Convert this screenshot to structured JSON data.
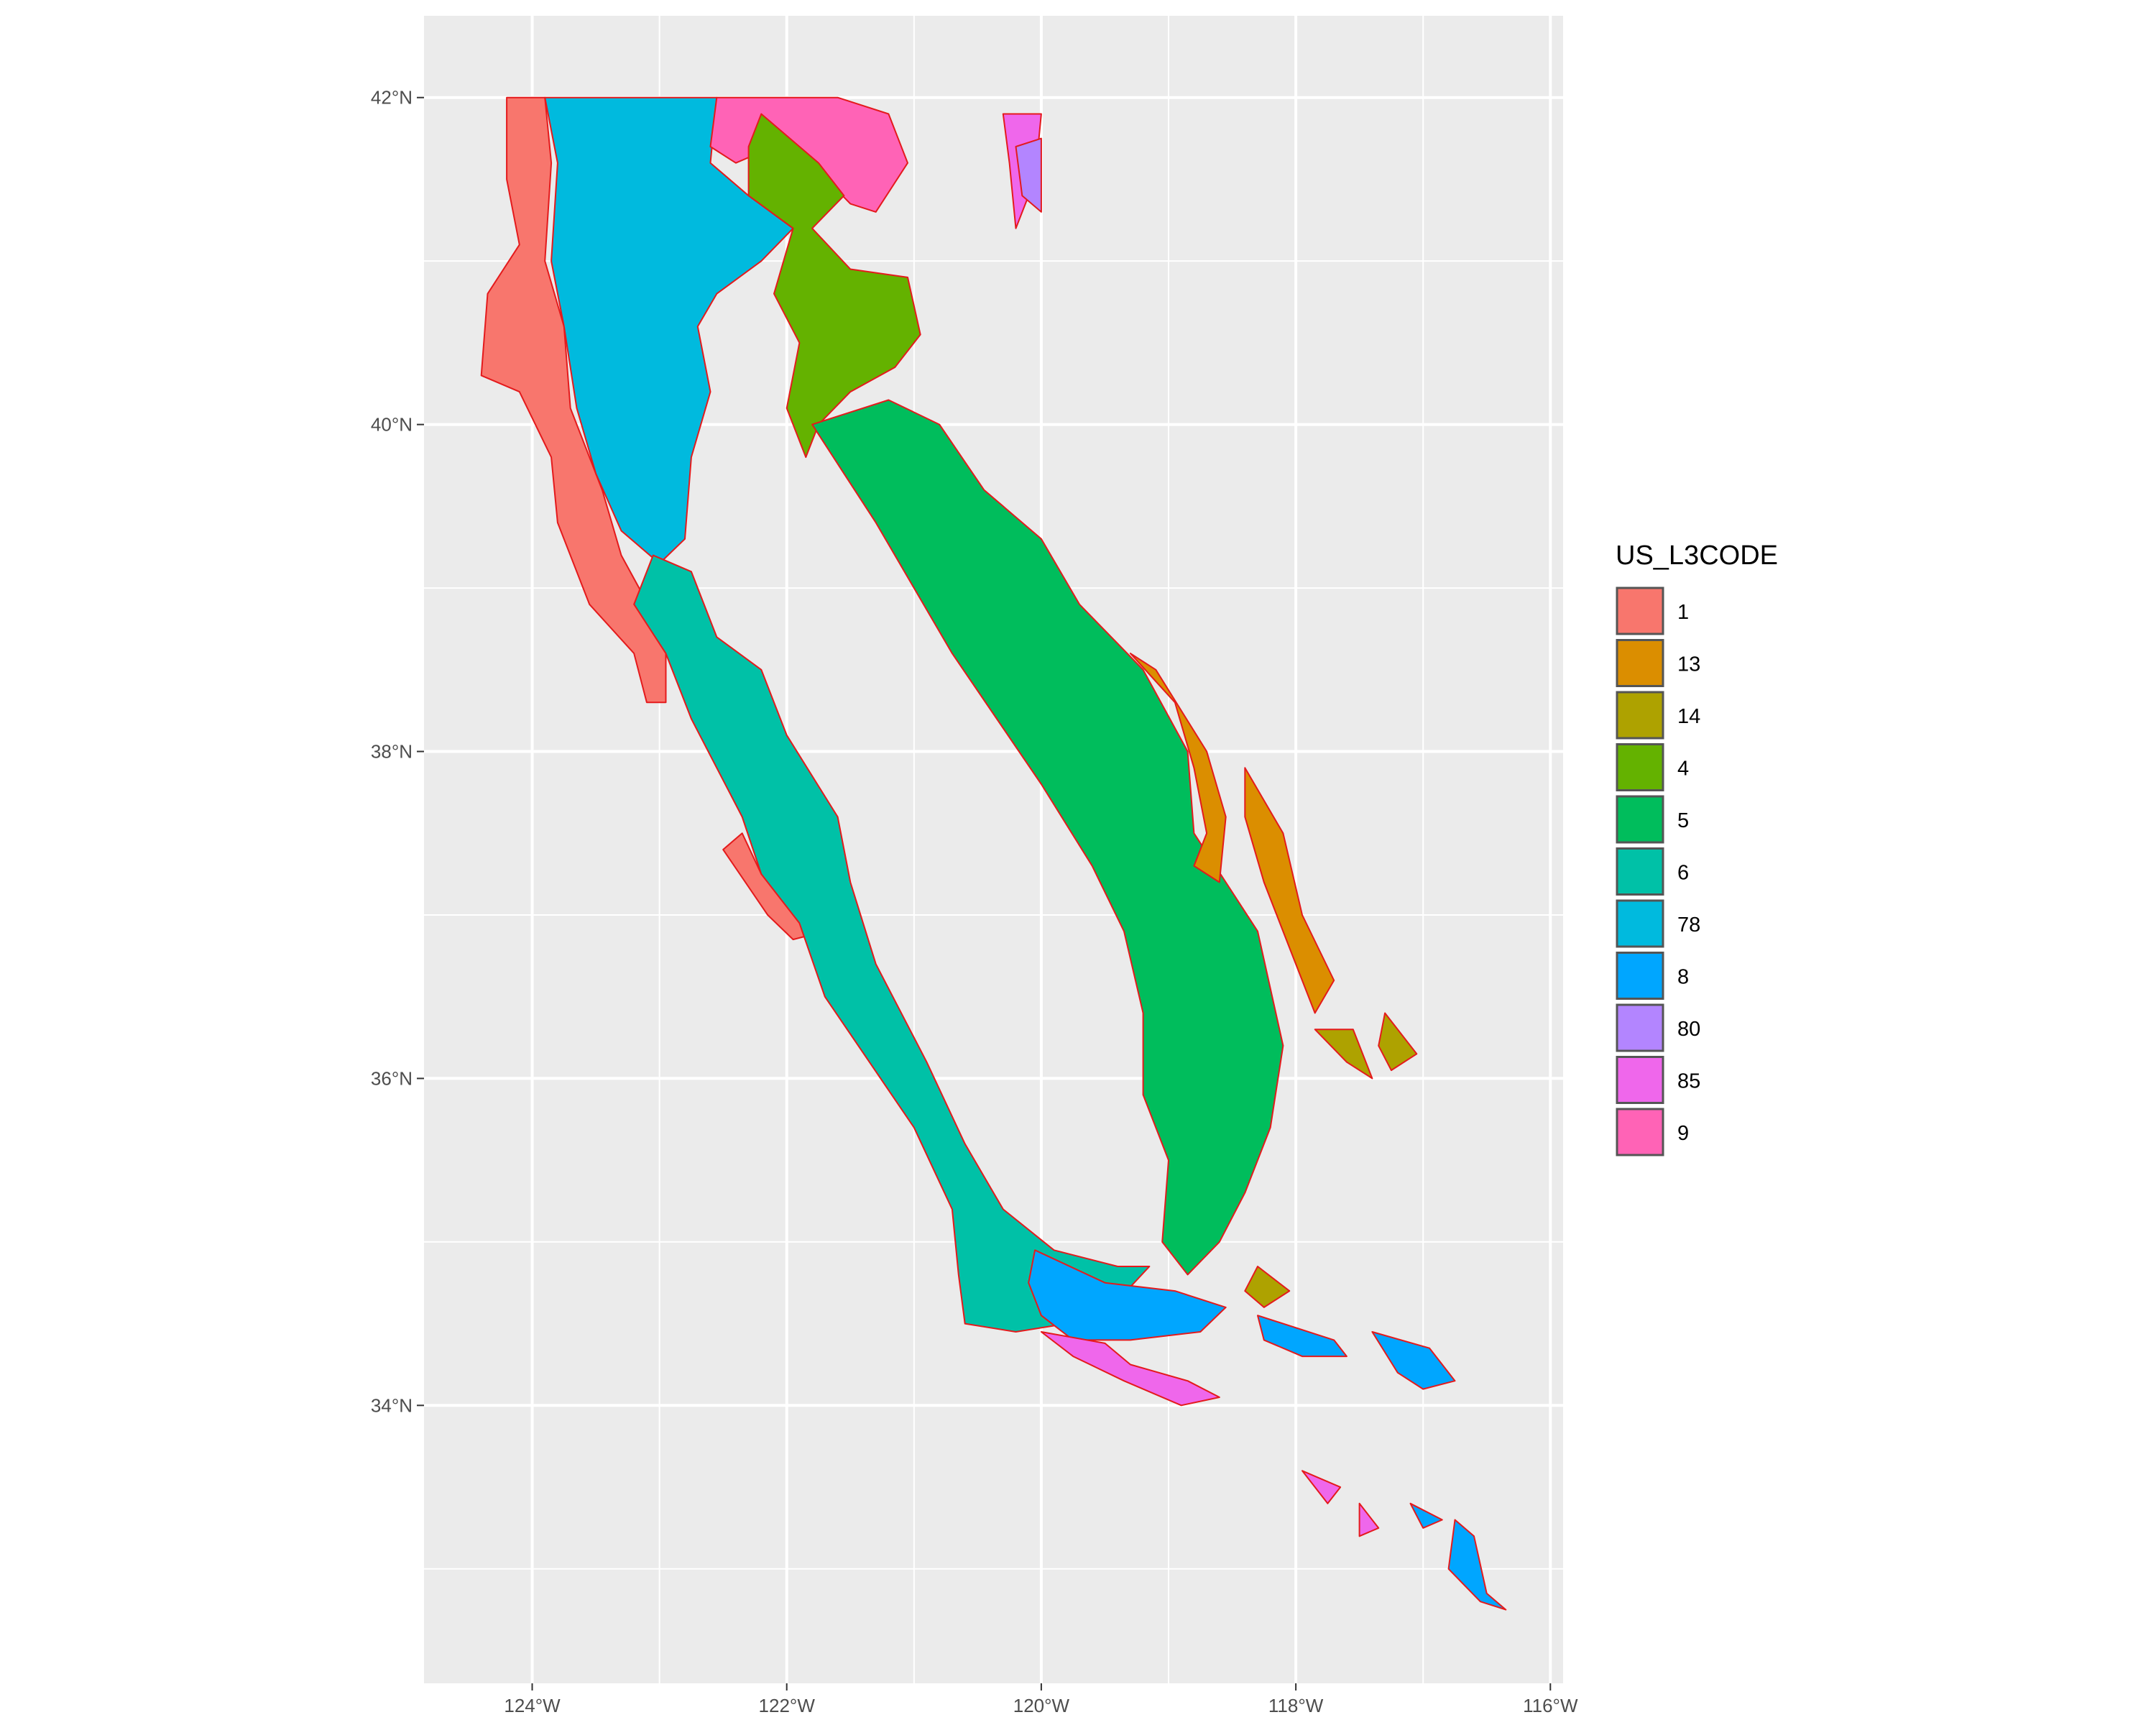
{
  "map": {
    "x_ticks": [
      "124°W",
      "122°W",
      "120°W",
      "118°W",
      "116°W"
    ],
    "x_tick_values": [
      -124,
      -122,
      -120,
      -118,
      -116
    ],
    "y_ticks": [
      "42°N",
      "40°N",
      "38°N",
      "36°N",
      "34°N"
    ],
    "y_tick_values": [
      42,
      40,
      38,
      36,
      34
    ],
    "xlim": [
      -124.85,
      -115.9
    ],
    "ylim": [
      32.3,
      42.5
    ],
    "panel_background": "#ebebeb",
    "grid_color": "#ffffff",
    "region_border_color": "#e41a1c",
    "legend": {
      "title": "US_L3CODE",
      "placement": "right",
      "entries": [
        {
          "label": "1",
          "color": "#F8766D"
        },
        {
          "label": "13",
          "color": "#DB8E00"
        },
        {
          "label": "14",
          "color": "#AEA200"
        },
        {
          "label": "4",
          "color": "#64B200"
        },
        {
          "label": "5",
          "color": "#00BD5C"
        },
        {
          "label": "6",
          "color": "#00C1A7"
        },
        {
          "label": "78",
          "color": "#00BADE"
        },
        {
          "label": "8",
          "color": "#00A6FF"
        },
        {
          "label": "80",
          "color": "#B385FF"
        },
        {
          "label": "85",
          "color": "#EF67EB"
        },
        {
          "label": "9",
          "color": "#FF63B6"
        }
      ]
    },
    "regions": [
      {
        "code": "1",
        "color": "#F8766D",
        "polygons": [
          [
            [
              -124.2,
              42.0
            ],
            [
              -123.9,
              42.0
            ],
            [
              -123.85,
              41.6
            ],
            [
              -123.9,
              41.0
            ],
            [
              -123.75,
              40.6
            ],
            [
              -123.7,
              40.1
            ],
            [
              -123.45,
              39.6
            ],
            [
              -123.3,
              39.2
            ],
            [
              -122.95,
              38.7
            ],
            [
              -122.95,
              38.3
            ],
            [
              -123.1,
              38.3
            ],
            [
              -123.2,
              38.6
            ],
            [
              -123.55,
              38.9
            ],
            [
              -123.8,
              39.4
            ],
            [
              -123.85,
              39.8
            ],
            [
              -124.1,
              40.2
            ],
            [
              -124.4,
              40.3
            ],
            [
              -124.35,
              40.8
            ],
            [
              -124.1,
              41.1
            ],
            [
              -124.2,
              41.5
            ]
          ],
          [
            [
              -122.5,
              37.4
            ],
            [
              -122.15,
              37.0
            ],
            [
              -121.95,
              36.85
            ],
            [
              -121.7,
              36.9
            ],
            [
              -122.0,
              37.1
            ],
            [
              -122.2,
              37.25
            ],
            [
              -122.35,
              37.5
            ]
          ]
        ]
      },
      {
        "code": "78",
        "color": "#00BADE",
        "polygons": [
          [
            [
              -123.9,
              42.0
            ],
            [
              -122.55,
              42.0
            ],
            [
              -122.6,
              41.6
            ],
            [
              -122.3,
              41.4
            ],
            [
              -121.95,
              41.2
            ],
            [
              -122.2,
              41.0
            ],
            [
              -122.55,
              40.8
            ],
            [
              -122.7,
              40.6
            ],
            [
              -122.6,
              40.2
            ],
            [
              -122.75,
              39.8
            ],
            [
              -122.8,
              39.3
            ],
            [
              -123.0,
              39.15
            ],
            [
              -123.3,
              39.35
            ],
            [
              -123.5,
              39.7
            ],
            [
              -123.65,
              40.1
            ],
            [
              -123.75,
              40.6
            ],
            [
              -123.85,
              41.0
            ],
            [
              -123.8,
              41.6
            ]
          ]
        ]
      },
      {
        "code": "9",
        "color": "#FF63B6",
        "polygons": [
          [
            [
              -122.55,
              42.0
            ],
            [
              -121.6,
              42.0
            ],
            [
              -121.2,
              41.9
            ],
            [
              -121.05,
              41.6
            ],
            [
              -121.3,
              41.3
            ],
            [
              -121.5,
              41.35
            ],
            [
              -121.75,
              41.55
            ],
            [
              -122.1,
              41.7
            ],
            [
              -122.4,
              41.6
            ],
            [
              -122.6,
              41.7
            ]
          ]
        ]
      },
      {
        "code": "4",
        "color": "#64B200",
        "polygons": [
          [
            [
              -122.2,
              41.9
            ],
            [
              -121.75,
              41.6
            ],
            [
              -121.55,
              41.4
            ],
            [
              -121.8,
              41.2
            ],
            [
              -121.5,
              40.95
            ],
            [
              -121.05,
              40.9
            ],
            [
              -120.95,
              40.55
            ],
            [
              -121.15,
              40.35
            ],
            [
              -121.5,
              40.2
            ],
            [
              -121.75,
              40.0
            ],
            [
              -121.85,
              39.8
            ],
            [
              -122.0,
              40.1
            ],
            [
              -121.9,
              40.5
            ],
            [
              -122.1,
              40.8
            ],
            [
              -121.95,
              41.2
            ],
            [
              -122.3,
              41.4
            ],
            [
              -122.3,
              41.7
            ]
          ]
        ]
      },
      {
        "code": "5",
        "color": "#00BD5C",
        "polygons": [
          [
            [
              -121.8,
              40.0
            ],
            [
              -121.2,
              40.15
            ],
            [
              -120.8,
              40.0
            ],
            [
              -120.45,
              39.6
            ],
            [
              -120.0,
              39.3
            ],
            [
              -119.7,
              38.9
            ],
            [
              -119.2,
              38.5
            ],
            [
              -118.85,
              38.0
            ],
            [
              -118.8,
              37.5
            ],
            [
              -118.55,
              37.2
            ],
            [
              -118.3,
              36.9
            ],
            [
              -118.1,
              36.2
            ],
            [
              -118.2,
              35.7
            ],
            [
              -118.4,
              35.3
            ],
            [
              -118.6,
              35.0
            ],
            [
              -118.85,
              34.8
            ],
            [
              -119.05,
              35.0
            ],
            [
              -119.0,
              35.5
            ],
            [
              -119.2,
              35.9
            ],
            [
              -119.2,
              36.4
            ],
            [
              -119.35,
              36.9
            ],
            [
              -119.6,
              37.3
            ],
            [
              -120.0,
              37.8
            ],
            [
              -120.35,
              38.2
            ],
            [
              -120.7,
              38.6
            ],
            [
              -121.0,
              39.0
            ],
            [
              -121.3,
              39.4
            ],
            [
              -121.55,
              39.7
            ]
          ]
        ]
      },
      {
        "code": "13",
        "color": "#DB8E00",
        "polygons": [
          [
            [
              -119.3,
              38.6
            ],
            [
              -118.95,
              38.3
            ],
            [
              -118.8,
              37.9
            ],
            [
              -118.7,
              37.5
            ],
            [
              -118.8,
              37.3
            ],
            [
              -118.6,
              37.2
            ],
            [
              -118.55,
              37.6
            ],
            [
              -118.7,
              38.0
            ],
            [
              -119.1,
              38.5
            ]
          ],
          [
            [
              -118.4,
              37.9
            ],
            [
              -118.1,
              37.5
            ],
            [
              -117.95,
              37.0
            ],
            [
              -117.7,
              36.6
            ],
            [
              -117.85,
              36.4
            ],
            [
              -118.05,
              36.8
            ],
            [
              -118.25,
              37.2
            ],
            [
              -118.4,
              37.6
            ]
          ]
        ]
      },
      {
        "code": "14",
        "color": "#AEA200",
        "polygons": [
          [
            [
              -117.85,
              36.3
            ],
            [
              -117.6,
              36.1
            ],
            [
              -117.4,
              36.0
            ],
            [
              -117.55,
              36.3
            ]
          ],
          [
            [
              -117.3,
              36.4
            ],
            [
              -117.05,
              36.15
            ],
            [
              -117.25,
              36.05
            ],
            [
              -117.35,
              36.2
            ]
          ],
          [
            [
              -118.3,
              34.85
            ],
            [
              -118.05,
              34.7
            ],
            [
              -118.25,
              34.6
            ],
            [
              -118.4,
              34.7
            ]
          ]
        ]
      },
      {
        "code": "6",
        "color": "#00C1A7",
        "polygons": [
          [
            [
              -123.05,
              39.2
            ],
            [
              -122.75,
              39.1
            ],
            [
              -122.55,
              38.7
            ],
            [
              -122.2,
              38.5
            ],
            [
              -122.0,
              38.1
            ],
            [
              -121.6,
              37.6
            ],
            [
              -121.5,
              37.2
            ],
            [
              -121.3,
              36.7
            ],
            [
              -120.9,
              36.1
            ],
            [
              -120.6,
              35.6
            ],
            [
              -120.3,
              35.2
            ],
            [
              -119.9,
              34.95
            ],
            [
              -119.4,
              34.85
            ],
            [
              -119.15,
              34.85
            ],
            [
              -119.45,
              34.6
            ],
            [
              -119.8,
              34.5
            ],
            [
              -120.2,
              34.45
            ],
            [
              -120.6,
              34.5
            ],
            [
              -120.65,
              34.8
            ],
            [
              -120.7,
              35.2
            ],
            [
              -121.0,
              35.7
            ],
            [
              -121.35,
              36.1
            ],
            [
              -121.7,
              36.5
            ],
            [
              -121.9,
              36.95
            ],
            [
              -122.2,
              37.25
            ],
            [
              -122.35,
              37.6
            ],
            [
              -122.55,
              37.9
            ],
            [
              -122.75,
              38.2
            ],
            [
              -122.95,
              38.6
            ],
            [
              -123.2,
              38.9
            ]
          ]
        ]
      },
      {
        "code": "8",
        "color": "#00A6FF",
        "polygons": [
          [
            [
              -120.05,
              34.95
            ],
            [
              -119.5,
              34.75
            ],
            [
              -118.95,
              34.7
            ],
            [
              -118.55,
              34.6
            ],
            [
              -118.75,
              34.45
            ],
            [
              -119.3,
              34.4
            ],
            [
              -119.75,
              34.4
            ],
            [
              -120.0,
              34.55
            ],
            [
              -120.1,
              34.75
            ]
          ],
          [
            [
              -118.3,
              34.55
            ],
            [
              -117.7,
              34.4
            ],
            [
              -117.6,
              34.3
            ],
            [
              -117.95,
              34.3
            ],
            [
              -118.25,
              34.4
            ]
          ],
          [
            [
              -117.4,
              34.45
            ],
            [
              -116.95,
              34.35
            ],
            [
              -116.75,
              34.15
            ],
            [
              -117.0,
              34.1
            ],
            [
              -117.2,
              34.2
            ]
          ],
          [
            [
              -117.1,
              33.4
            ],
            [
              -116.85,
              33.3
            ],
            [
              -117.0,
              33.25
            ]
          ],
          [
            [
              -116.75,
              33.3
            ],
            [
              -116.6,
              33.2
            ],
            [
              -116.5,
              32.85
            ],
            [
              -116.35,
              32.75
            ],
            [
              -116.55,
              32.8
            ],
            [
              -116.8,
              33.0
            ]
          ]
        ]
      },
      {
        "code": "85",
        "color": "#EF67EB",
        "polygons": [
          [
            [
              -120.0,
              34.45
            ],
            [
              -119.5,
              34.38
            ],
            [
              -119.3,
              34.25
            ],
            [
              -118.85,
              34.15
            ],
            [
              -118.6,
              34.05
            ],
            [
              -118.9,
              34.0
            ],
            [
              -119.35,
              34.15
            ],
            [
              -119.75,
              34.3
            ]
          ],
          [
            [
              -117.95,
              33.6
            ],
            [
              -117.65,
              33.5
            ],
            [
              -117.75,
              33.4
            ]
          ],
          [
            [
              -117.5,
              33.4
            ],
            [
              -117.35,
              33.25
            ],
            [
              -117.5,
              33.2
            ]
          ],
          [
            [
              -120.3,
              41.9
            ],
            [
              -120.0,
              41.9
            ],
            [
              -120.05,
              41.5
            ],
            [
              -120.2,
              41.2
            ],
            [
              -120.25,
              41.6
            ]
          ]
        ]
      },
      {
        "code": "80",
        "color": "#B385FF",
        "polygons": [
          [
            [
              -120.0,
              41.75
            ],
            [
              -120.2,
              41.7
            ],
            [
              -120.15,
              41.4
            ],
            [
              -120.0,
              41.3
            ]
          ]
        ]
      }
    ]
  }
}
